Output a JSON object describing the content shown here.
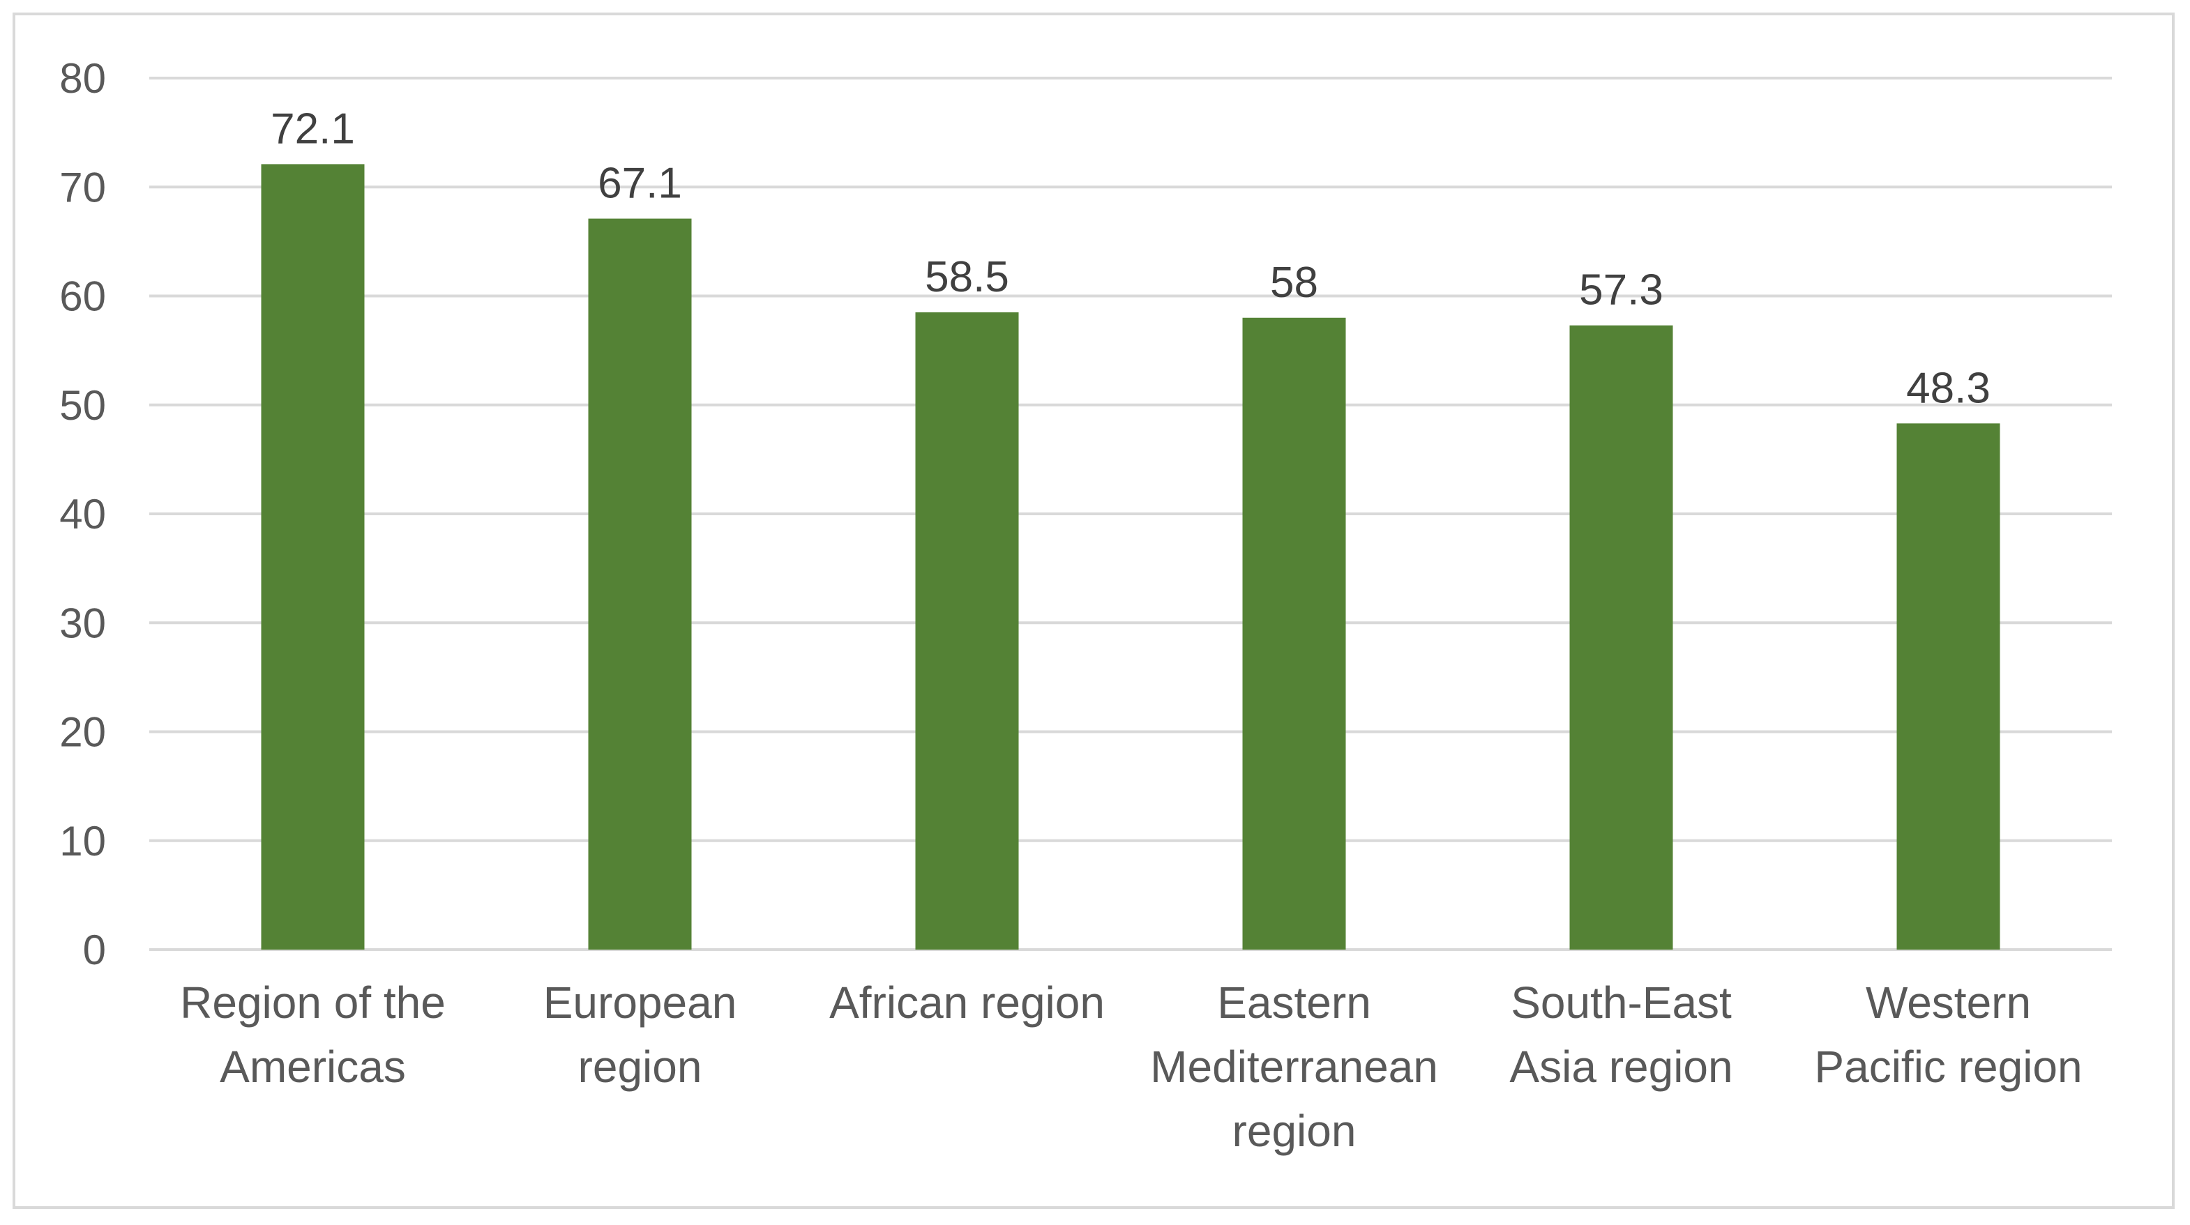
{
  "chart_data": {
    "type": "bar",
    "categories": [
      [
        "Region of the",
        "Americas"
      ],
      [
        "European",
        "region"
      ],
      [
        "African region"
      ],
      [
        "Eastern",
        "Mediterranean",
        "region"
      ],
      [
        "South-East",
        "Asia region"
      ],
      [
        "Western",
        "Pacific region"
      ]
    ],
    "values": [
      72.1,
      67.1,
      58.5,
      58,
      57.3,
      48.3
    ],
    "data_labels": [
      "72.1",
      "67.1",
      "58.5",
      "58",
      "57.3",
      "48.3"
    ],
    "title": "",
    "xlabel": "",
    "ylabel": "",
    "ylim": [
      0,
      80
    ],
    "yticks": [
      "0",
      "10",
      "20",
      "30",
      "40",
      "50",
      "60",
      "70",
      "80"
    ],
    "grid": true,
    "legend": "none",
    "colors": {
      "bar": "#548235",
      "grid": "#d9d9d9",
      "tick_text": "#595959",
      "data_label_text": "#404040"
    }
  }
}
